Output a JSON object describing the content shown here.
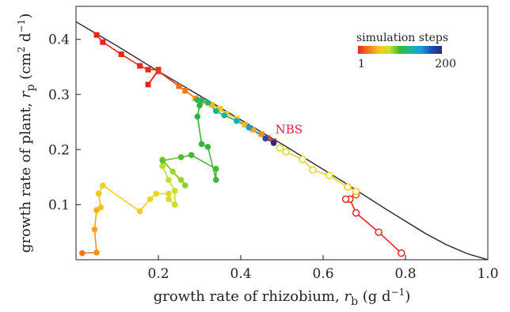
{
  "chart_data": {
    "type": "scatter",
    "title": "",
    "xlabel_main": "growth rate of rhizobium, ",
    "xlabel_var": "r",
    "xlabel_sub": "b",
    "xlabel_unit": " (g d",
    "xlabel_unit_exp": "−1",
    "xlabel_close": ")",
    "ylabel_main": "growth rate of plant, ",
    "ylabel_var": "r",
    "ylabel_sub": "p",
    "ylabel_unit": " (cm",
    "ylabel_unit_exp1": "2",
    "ylabel_unit_mid": " d",
    "ylabel_unit_exp2": "−1",
    "ylabel_close": ")",
    "xlim": [
      0,
      1.0
    ],
    "ylim": [
      0,
      0.46
    ],
    "x_ticks": [
      0.2,
      0.4,
      0.6,
      0.8,
      1.0
    ],
    "x_tick_labels": [
      "0.2",
      "0.4",
      "0.6",
      "0.8",
      "1.0"
    ],
    "y_ticks": [
      0.1,
      0.2,
      0.3,
      0.4
    ],
    "y_tick_labels": [
      "0.1",
      "0.2",
      "0.3",
      "0.4"
    ],
    "annotation": {
      "text": "NBS",
      "x": 0.48,
      "y": 0.215,
      "color": "#e8203a"
    },
    "legend": {
      "title": "simulation steps",
      "min_label": "1",
      "max_label": "200",
      "placement": "top-right",
      "colors": [
        "#e8261e",
        "#f2781e",
        "#f6c81e",
        "#c8e028",
        "#38b838",
        "#1ab898",
        "#1aa0e0",
        "#2048b8",
        "#302880"
      ]
    },
    "frontier": {
      "name": "",
      "color": "#333333",
      "x": [
        0.0,
        0.05,
        0.1,
        0.15,
        0.2,
        0.25,
        0.3,
        0.35,
        0.4,
        0.45,
        0.5,
        0.55,
        0.6,
        0.65,
        0.7,
        0.75,
        0.8,
        0.85,
        0.9,
        0.95,
        1.0
      ],
      "y": [
        0.432,
        0.41,
        0.388,
        0.365,
        0.342,
        0.32,
        0.298,
        0.276,
        0.254,
        0.232,
        0.21,
        0.187,
        0.164,
        0.141,
        0.117,
        0.093,
        0.07,
        0.047,
        0.027,
        0.011,
        0.0
      ]
    },
    "series": [
      {
        "marker": "square",
        "color": "#e8261e",
        "x": [
          0.05,
          0.065,
          0.11,
          0.155,
          0.175,
          0.2,
          0.175,
          0.2,
          0.2,
          0.25,
          0.265,
          0.29,
          0.305,
          0.33,
          0.35,
          0.365,
          0.39,
          0.41,
          0.43,
          0.45,
          0.465,
          0.48
        ],
        "y": [
          0.408,
          0.395,
          0.373,
          0.352,
          0.345,
          0.345,
          0.318,
          0.343,
          0.342,
          0.315,
          0.307,
          0.293,
          0.287,
          0.281,
          0.274,
          0.265,
          0.256,
          0.245,
          0.236,
          0.228,
          0.221,
          0.215
        ],
        "colors": [
          "#e8261e",
          "#e8261e",
          "#e8261e",
          "#e8261e",
          "#e8261e",
          "#e8261e",
          "#e8261e",
          "#e8261e",
          "#ea3a1e",
          "#ef6a1e",
          "#f2781e",
          "#f2901e",
          "#f4a81e",
          "#f6b81e",
          "#f6c81e",
          "#f0d01e",
          "#f6c81e",
          "#f2b81e",
          "#f0a81e",
          "#e89020",
          "#e8401e",
          "#e8261e"
        ]
      },
      {
        "marker": "circle",
        "color": "#f0901e",
        "x": [
          0.015,
          0.05,
          0.045,
          0.05,
          0.06,
          0.055,
          0.065,
          0.155,
          0.18,
          0.195,
          0.225,
          0.225,
          0.24,
          0.24,
          0.225,
          0.21,
          0.21,
          0.235,
          0.255,
          0.265,
          0.21,
          0.255,
          0.28,
          0.34,
          0.34,
          0.32,
          0.305,
          0.295,
          0.3,
          0.295,
          0.305,
          0.32,
          0.34,
          0.36,
          0.39,
          0.42,
          0.46,
          0.48
        ],
        "y": [
          0.012,
          0.013,
          0.055,
          0.09,
          0.095,
          0.12,
          0.135,
          0.088,
          0.11,
          0.12,
          0.12,
          0.11,
          0.1,
          0.125,
          0.145,
          0.17,
          0.182,
          0.16,
          0.145,
          0.135,
          0.18,
          0.186,
          0.19,
          0.165,
          0.145,
          0.205,
          0.21,
          0.26,
          0.28,
          0.29,
          0.29,
          0.285,
          0.27,
          0.262,
          0.252,
          0.24,
          0.22,
          0.212
        ],
        "colors": [
          "#f2781e",
          "#f2901e",
          "#f4a81e",
          "#f4b01e",
          "#f6c01e",
          "#f0c81e",
          "#f0d21e",
          "#f0d21e",
          "#e8d81e",
          "#e8d81e",
          "#e0da22",
          "#d8dc24",
          "#d0dc26",
          "#c8de28",
          "#c0de2a",
          "#b8de2c",
          "#a8d830",
          "#a0d430",
          "#98d032",
          "#90cc34",
          "#60c038",
          "#50bc38",
          "#44b838",
          "#44b838",
          "#40b63a",
          "#38b43a",
          "#34b43c",
          "#30b440",
          "#2cb448",
          "#28b458",
          "#26b468",
          "#22b478",
          "#20b488",
          "#1eb498",
          "#1aa8c0",
          "#1a98e0",
          "#2048b8",
          "#302880"
        ]
      },
      {
        "marker": "ring",
        "color": "#e8261e",
        "x": [
          0.79,
          0.735,
          0.68,
          0.665,
          0.655,
          0.68,
          0.68,
          0.66,
          0.615,
          0.575,
          0.55,
          0.51,
          0.495
        ],
        "y": [
          0.012,
          0.05,
          0.085,
          0.11,
          0.11,
          0.118,
          0.124,
          0.132,
          0.153,
          0.163,
          0.182,
          0.196,
          0.203
        ],
        "colors": [
          "#e8261e",
          "#e8261e",
          "#e8261e",
          "#e8261e",
          "#e8261e",
          "#e84420",
          "#f6c81e",
          "#f6c81e",
          "#e8d81e",
          "#e8d81e",
          "#e0d828",
          "#d8d830",
          "#d0d830"
        ]
      }
    ]
  }
}
